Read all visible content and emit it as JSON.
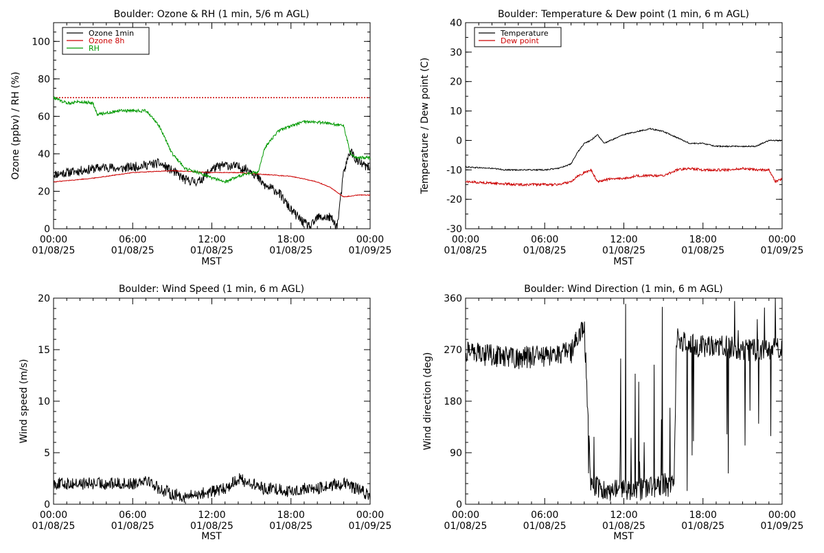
{
  "charts": [
    {
      "type": "line",
      "title": "Boulder: Ozone & RH (1 min, 5/6 m AGL)",
      "ylabel": "Ozone (ppbv) / RH (%)",
      "xlabel": "MST",
      "ylim": [
        0,
        110
      ],
      "yticks": [
        0,
        20,
        40,
        60,
        80,
        100
      ],
      "xticks": [
        {
          "time": "00:00",
          "date": "01/08/25"
        },
        {
          "time": "06:00",
          "date": "01/08/25"
        },
        {
          "time": "12:00",
          "date": "01/08/25"
        },
        {
          "time": "18:00",
          "date": "01/08/25"
        },
        {
          "time": "00:00",
          "date": "01/09/25"
        }
      ],
      "legend": {
        "placement": "top-left"
      },
      "reference_line": {
        "value": 70,
        "color": "#cc0000",
        "style": "dotted"
      },
      "series": [
        {
          "name": "Ozone 1min",
          "color": "#000000",
          "x": [
            0,
            1,
            2,
            3,
            4,
            5,
            6,
            7,
            8,
            9,
            10,
            11,
            12,
            13,
            14,
            15,
            16,
            17,
            18,
            19,
            19.5,
            20,
            21,
            21.5,
            22,
            22.5,
            23,
            24
          ],
          "y": [
            29,
            30,
            31,
            32,
            33,
            32,
            33,
            34,
            35,
            31,
            26,
            25,
            32,
            34,
            33,
            31,
            23,
            20,
            10,
            3,
            1,
            6,
            6,
            1,
            30,
            42,
            36,
            32
          ],
          "noise": 2.5
        },
        {
          "name": "Ozone 8h",
          "color": "#cc0000",
          "x": [
            0,
            3,
            6,
            9,
            12,
            14,
            16,
            18,
            20,
            21,
            22,
            23,
            24
          ],
          "y": [
            25,
            27,
            30,
            31,
            30,
            30,
            29,
            28,
            25,
            22,
            17,
            18,
            18
          ],
          "noise": 0.2
        },
        {
          "name": "RH",
          "color": "#009900",
          "x": [
            0,
            1,
            2,
            3,
            3.3,
            5,
            7,
            8,
            9,
            10,
            11,
            12,
            13,
            14,
            15,
            15.5,
            16,
            17,
            18,
            19,
            20,
            21,
            22,
            22.5,
            23,
            24
          ],
          "y": [
            70,
            67,
            68,
            67,
            61,
            63,
            63,
            55,
            40,
            32,
            30,
            27,
            25,
            28,
            30,
            30,
            43,
            52,
            55,
            57,
            57,
            56,
            55,
            40,
            38,
            38
          ],
          "noise": 0.8
        }
      ]
    },
    {
      "type": "line",
      "title": "Boulder: Temperature & Dew point (1 min, 6 m AGL)",
      "ylabel": "Temperature / Dew point (C)",
      "xlabel": "MST",
      "ylim": [
        -30,
        40
      ],
      "yticks": [
        -30,
        -20,
        -10,
        0,
        10,
        20,
        30,
        40
      ],
      "xticks": [
        {
          "time": "00:00",
          "date": "01/08/25"
        },
        {
          "time": "06:00",
          "date": "01/08/25"
        },
        {
          "time": "12:00",
          "date": "01/08/25"
        },
        {
          "time": "18:00",
          "date": "01/08/25"
        },
        {
          "time": "00:00",
          "date": "01/09/25"
        }
      ],
      "legend": {
        "placement": "top-left"
      },
      "series": [
        {
          "name": "Temperature",
          "color": "#000000",
          "x": [
            0,
            2,
            3,
            6,
            7,
            8,
            8.5,
            9,
            9.5,
            10,
            10.5,
            11,
            12,
            13,
            14,
            15,
            16,
            17,
            18,
            19,
            20,
            21,
            22,
            23,
            24
          ],
          "y": [
            -9,
            -9.5,
            -10,
            -10,
            -9.5,
            -8,
            -4,
            -1,
            0,
            2,
            -1,
            0,
            2,
            3,
            4,
            3,
            1,
            -1,
            -1,
            -2,
            -2,
            -2,
            -2,
            0,
            0
          ],
          "noise": 0.2
        },
        {
          "name": "Dew point",
          "color": "#cc0000",
          "x": [
            0,
            2,
            4,
            6,
            7,
            8,
            8.5,
            9,
            9.5,
            10,
            11,
            12,
            13,
            14,
            15,
            16,
            17,
            18,
            19,
            20,
            21,
            22,
            23,
            23.5,
            24
          ],
          "y": [
            -14,
            -14.5,
            -15,
            -15,
            -15,
            -14,
            -12,
            -11,
            -10,
            -14,
            -13,
            -13,
            -12,
            -12,
            -12,
            -10,
            -9.5,
            -10,
            -10,
            -10,
            -9.5,
            -10,
            -10,
            -14,
            -13
          ],
          "noise": 0.4
        }
      ]
    },
    {
      "type": "line",
      "title": "Boulder: Wind Speed (1 min, 6 m AGL)",
      "ylabel": "Wind speed (m/s)",
      "xlabel": "MST",
      "ylim": [
        0,
        20
      ],
      "yticks": [
        0,
        5,
        10,
        15,
        20
      ],
      "xticks": [
        {
          "time": "00:00",
          "date": "01/08/25"
        },
        {
          "time": "06:00",
          "date": "01/08/25"
        },
        {
          "time": "12:00",
          "date": "01/08/25"
        },
        {
          "time": "18:00",
          "date": "01/08/25"
        },
        {
          "time": "00:00",
          "date": "01/09/25"
        }
      ],
      "series": [
        {
          "name": "",
          "color": "#000000",
          "x": [
            0,
            2,
            4,
            6,
            7,
            8,
            9,
            10,
            11,
            12,
            13,
            14,
            15,
            16,
            17,
            18,
            19,
            20,
            21,
            22,
            23,
            24
          ],
          "y": [
            2,
            2,
            2,
            2,
            2.5,
            1.5,
            1,
            0.7,
            1,
            1.2,
            1.5,
            2.5,
            2,
            1.5,
            1.5,
            1.2,
            1.5,
            1.5,
            1.8,
            2,
            1.5,
            0.8
          ],
          "noise": 0.6
        }
      ]
    },
    {
      "type": "scatter",
      "title": "Boulder: Wind Direction (1 min, 6 m AGL)",
      "ylabel": "Wind direction (deg)",
      "xlabel": "MST",
      "ylim": [
        0,
        360
      ],
      "yticks": [
        0,
        90,
        180,
        270,
        360
      ],
      "xticks": [
        {
          "time": "00:00",
          "date": "01/08/25"
        },
        {
          "time": "06:00",
          "date": "01/08/25"
        },
        {
          "time": "12:00",
          "date": "01/08/25"
        },
        {
          "time": "18:00",
          "date": "01/08/25"
        },
        {
          "time": "00:00",
          "date": "01/09/25"
        }
      ],
      "series": [
        {
          "name": "",
          "color": "#000000",
          "x": [
            0,
            2,
            4,
            6,
            8,
            8.5,
            9,
            9.5,
            10,
            11,
            12,
            13,
            14,
            15,
            15.8,
            16,
            17,
            18,
            19,
            20,
            21,
            22,
            23,
            24
          ],
          "y": [
            265,
            260,
            255,
            260,
            265,
            290,
            310,
            40,
            30,
            25,
            25,
            25,
            30,
            35,
            30,
            290,
            280,
            275,
            280,
            275,
            270,
            270,
            270,
            270
          ],
          "noise": 20
        }
      ]
    }
  ]
}
